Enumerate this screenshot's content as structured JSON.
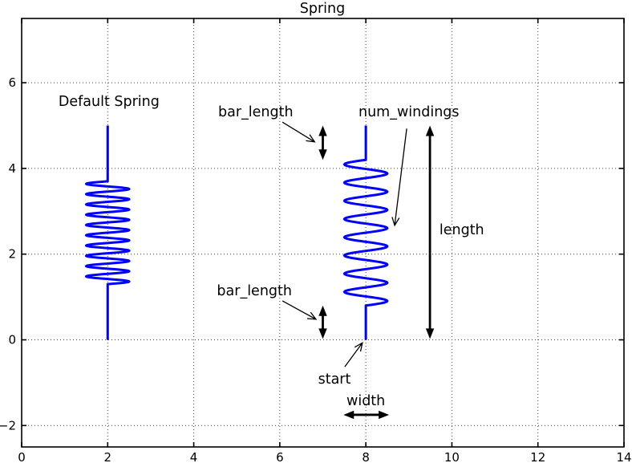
{
  "chart_data": {
    "type": "line",
    "title": "Spring",
    "xlabel": "",
    "ylabel": "",
    "xlim": [
      0,
      14
    ],
    "ylim": [
      -2.5,
      7.5
    ],
    "xticks": [
      0,
      2,
      4,
      6,
      8,
      10,
      12,
      14
    ],
    "xtick_labels": [
      "0",
      "2",
      "4",
      "6",
      "8",
      "10",
      "12",
      "14"
    ],
    "yticks": [
      -2,
      0,
      2,
      4,
      6
    ],
    "ytick_labels": [
      "−2",
      "0",
      "2",
      "4",
      "6"
    ],
    "grid": true,
    "grid_style": "dotted",
    "legend": null,
    "colors": {
      "spring": "#0000ff",
      "axis": "#000000",
      "grid": "#444444",
      "annotation": "#000000"
    },
    "springs": [
      {
        "name": "default-spring",
        "x": 2,
        "start_y": 0,
        "length": 5,
        "bar_length": 1.3,
        "width": 0.5,
        "num_windings": 10
      },
      {
        "name": "annotated-spring",
        "x": 8,
        "start_y": 0,
        "length": 5,
        "bar_length": 0.8,
        "width": 0.5,
        "num_windings": 8
      }
    ],
    "labels": [
      {
        "name": "default-spring-label",
        "text": "Default Spring",
        "x": 2.03,
        "y": 5.46,
        "anchor": "middle"
      },
      {
        "name": "bar-length-top-label",
        "text": "bar_length",
        "x": 5.44,
        "y": 5.22,
        "anchor": "middle"
      },
      {
        "name": "num-windings-label",
        "text": "num_windings",
        "x": 9.0,
        "y": 5.22,
        "anchor": "middle"
      },
      {
        "name": "bar-length-bottom-label",
        "text": "bar_length",
        "x": 5.41,
        "y": 1.04,
        "anchor": "middle"
      },
      {
        "name": "length-label",
        "text": "length",
        "x": 9.71,
        "y": 2.46,
        "anchor": "start"
      },
      {
        "name": "start-label",
        "text": "start",
        "x": 7.27,
        "y": -1.02,
        "anchor": "middle"
      },
      {
        "name": "width-label",
        "text": "width",
        "x": 8.0,
        "y": -1.53,
        "anchor": "middle"
      }
    ],
    "pointer_arrows": [
      {
        "name": "bar-length-top-arrow",
        "x1": 6.06,
        "y1": 5.08,
        "x2": 6.81,
        "y2": 4.62
      },
      {
        "name": "bar-length-bottom-arrow",
        "x1": 6.06,
        "y1": 0.91,
        "x2": 6.84,
        "y2": 0.48
      },
      {
        "name": "num-windings-arrow",
        "x1": 8.95,
        "y1": 4.93,
        "x2": 8.67,
        "y2": 2.67
      },
      {
        "name": "start-arrow",
        "x1": 7.51,
        "y1": -0.63,
        "x2": 7.92,
        "y2": -0.07
      }
    ],
    "dimension_arrows": [
      {
        "name": "bar-length-top-dim",
        "x1": 7.0,
        "y1": 4.2,
        "x2": 7.0,
        "y2": 5.0
      },
      {
        "name": "bar-length-bottom-dim",
        "x1": 7.0,
        "y1": 0.02,
        "x2": 7.0,
        "y2": 0.8
      },
      {
        "name": "length-dim",
        "x1": 9.49,
        "y1": 0.02,
        "x2": 9.49,
        "y2": 5.0
      },
      {
        "name": "width-dim",
        "x1": 7.48,
        "y1": -1.75,
        "x2": 8.54,
        "y2": -1.75
      }
    ]
  }
}
